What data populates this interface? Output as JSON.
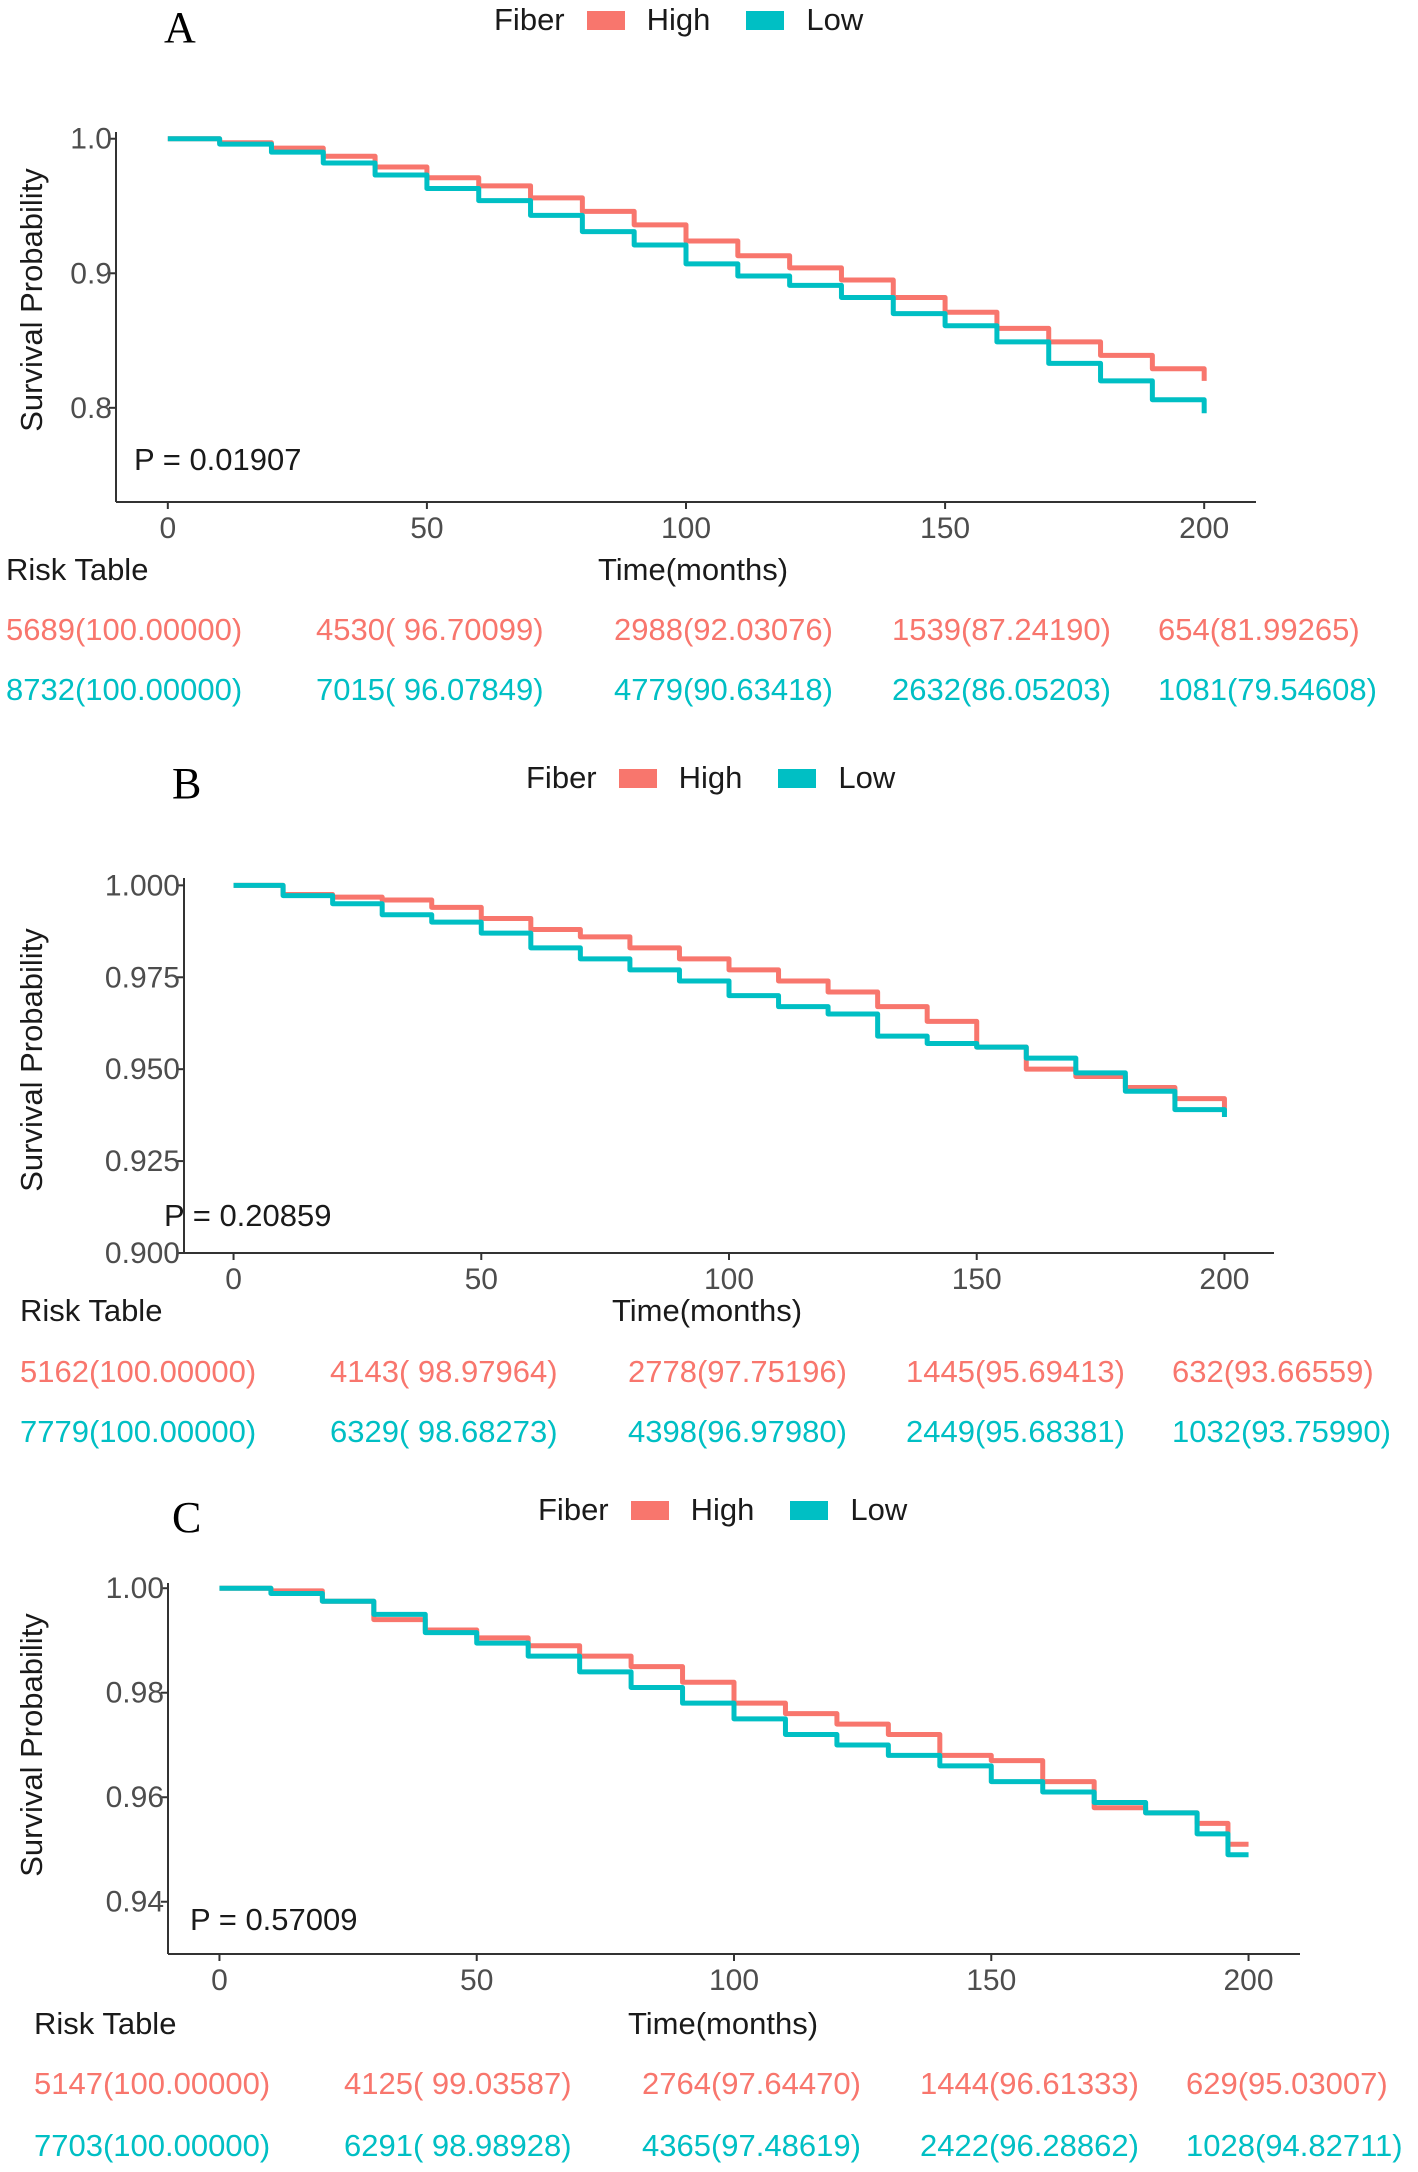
{
  "colors": {
    "high": "#F8766D",
    "low": "#00BFC4",
    "axis": "#333333",
    "text": "#1a1a1a"
  },
  "chart_data": [
    {
      "type": "line",
      "panel": "A",
      "legend_title": "Fiber",
      "legend_entries": [
        "High",
        "Low"
      ],
      "ylabel": "Survival Probability",
      "xlabel": "Time(months)",
      "xlim": [
        -10,
        210
      ],
      "ylim": [
        0.73,
        1.005
      ],
      "xticks": [
        0,
        50,
        100,
        150,
        200
      ],
      "yticks": [
        0.8,
        0.9,
        1.0
      ],
      "ytick_labels": [
        "0.8",
        "0.9",
        "1.0"
      ],
      "p_value": "P = 0.01907",
      "series": [
        {
          "name": "High",
          "x": [
            0,
            10,
            20,
            30,
            40,
            50,
            60,
            70,
            80,
            90,
            100,
            110,
            120,
            130,
            140,
            150,
            160,
            170,
            180,
            190,
            200
          ],
          "y": [
            1.0,
            0.997,
            0.993,
            0.987,
            0.979,
            0.971,
            0.965,
            0.956,
            0.946,
            0.936,
            0.924,
            0.913,
            0.904,
            0.895,
            0.882,
            0.871,
            0.859,
            0.849,
            0.839,
            0.829,
            0.82
          ]
        },
        {
          "name": "Low",
          "x": [
            0,
            10,
            20,
            30,
            40,
            50,
            60,
            70,
            80,
            90,
            100,
            110,
            120,
            130,
            140,
            150,
            160,
            170,
            180,
            190,
            200
          ],
          "y": [
            1.0,
            0.996,
            0.99,
            0.982,
            0.973,
            0.963,
            0.954,
            0.943,
            0.931,
            0.921,
            0.907,
            0.898,
            0.891,
            0.882,
            0.87,
            0.861,
            0.849,
            0.833,
            0.82,
            0.806,
            0.796
          ]
        }
      ],
      "risk_table": {
        "title": "Risk Table",
        "high": [
          "5689(100.00000)",
          "4530( 96.70099)",
          "2988(92.03076)",
          "1539(87.24190)",
          "654(81.99265)"
        ],
        "low": [
          "8732(100.00000)",
          "7015( 96.07849)",
          "4779(90.63418)",
          "2632(86.05203)",
          "1081(79.54608)"
        ]
      }
    },
    {
      "type": "line",
      "panel": "B",
      "legend_title": "Fiber",
      "legend_entries": [
        "High",
        "Low"
      ],
      "ylabel": "Survival Probability",
      "xlabel": "Time(months)",
      "xlim": [
        -10,
        210
      ],
      "ylim": [
        0.9,
        1.002
      ],
      "xticks": [
        0,
        50,
        100,
        150,
        200
      ],
      "yticks": [
        0.9,
        0.925,
        0.95,
        0.975,
        1.0
      ],
      "ytick_labels": [
        "0.900",
        "0.925",
        "0.950",
        "0.975",
        "1.000"
      ],
      "p_value": "P = 0.20859",
      "series": [
        {
          "name": "High",
          "x": [
            0,
            10,
            20,
            30,
            40,
            50,
            60,
            70,
            80,
            90,
            100,
            110,
            120,
            130,
            140,
            150,
            160,
            170,
            180,
            190,
            200
          ],
          "y": [
            1.0,
            0.9975,
            0.9968,
            0.996,
            0.994,
            0.991,
            0.988,
            0.986,
            0.983,
            0.98,
            0.977,
            0.974,
            0.971,
            0.967,
            0.963,
            0.956,
            0.95,
            0.948,
            0.945,
            0.942,
            0.938
          ]
        },
        {
          "name": "Low",
          "x": [
            0,
            10,
            20,
            30,
            40,
            50,
            60,
            70,
            80,
            90,
            100,
            110,
            120,
            130,
            140,
            150,
            160,
            170,
            180,
            190,
            200
          ],
          "y": [
            1.0,
            0.9972,
            0.995,
            0.992,
            0.99,
            0.987,
            0.983,
            0.98,
            0.977,
            0.974,
            0.97,
            0.967,
            0.965,
            0.959,
            0.957,
            0.956,
            0.953,
            0.949,
            0.944,
            0.939,
            0.937
          ]
        }
      ],
      "risk_table": {
        "title": "Risk Table",
        "high": [
          "5162(100.00000)",
          "4143( 98.97964)",
          "2778(97.75196)",
          "1445(95.69413)",
          "632(93.66559)"
        ],
        "low": [
          "7779(100.00000)",
          "6329( 98.68273)",
          "4398(96.97980)",
          "2449(95.68381)",
          "1032(93.75990)"
        ]
      }
    },
    {
      "type": "line",
      "panel": "C",
      "legend_title": "Fiber",
      "legend_entries": [
        "High",
        "Low"
      ],
      "ylabel": "Survival Probability",
      "xlabel": "Time(months)",
      "xlim": [
        -10,
        210
      ],
      "ylim": [
        0.93,
        1.001
      ],
      "xticks": [
        0,
        50,
        100,
        150,
        200
      ],
      "yticks": [
        0.94,
        0.96,
        0.98,
        1.0
      ],
      "ytick_labels": [
        "0.94",
        "0.96",
        "0.98",
        "1.00"
      ],
      "p_value": "P = 0.57009",
      "series": [
        {
          "name": "High",
          "x": [
            0,
            10,
            20,
            30,
            40,
            50,
            60,
            70,
            80,
            90,
            100,
            110,
            120,
            130,
            140,
            150,
            160,
            170,
            180,
            190,
            196,
            200
          ],
          "y": [
            1.0,
            0.9995,
            0.9975,
            0.994,
            0.992,
            0.9905,
            0.989,
            0.987,
            0.985,
            0.982,
            0.978,
            0.976,
            0.974,
            0.972,
            0.968,
            0.967,
            0.963,
            0.958,
            0.957,
            0.955,
            0.951,
            0.951
          ]
        },
        {
          "name": "Low",
          "x": [
            0,
            10,
            20,
            30,
            40,
            50,
            60,
            70,
            80,
            90,
            100,
            110,
            120,
            130,
            140,
            150,
            160,
            170,
            180,
            190,
            196,
            200
          ],
          "y": [
            1.0,
            0.999,
            0.9975,
            0.995,
            0.9915,
            0.9895,
            0.987,
            0.984,
            0.981,
            0.978,
            0.975,
            0.972,
            0.97,
            0.968,
            0.966,
            0.963,
            0.961,
            0.959,
            0.957,
            0.953,
            0.949,
            0.949
          ]
        }
      ],
      "risk_table": {
        "title": "Risk Table",
        "high": [
          "5147(100.00000)",
          "4125( 99.03587)",
          "2764(97.64470)",
          "1444(96.61333)",
          "629(95.03007)"
        ],
        "low": [
          "7703(100.00000)",
          "6291( 98.98928)",
          "4365(97.48619)",
          "2422(96.28862)",
          "1028(94.82711)"
        ]
      }
    }
  ]
}
